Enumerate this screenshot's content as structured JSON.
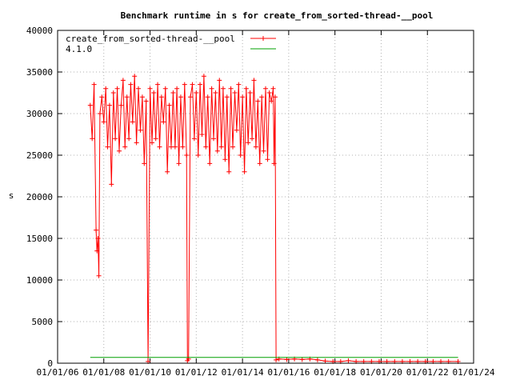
{
  "chart_data": {
    "type": "line",
    "title": "Benchmark runtime in s for create_from_sorted-thread-__pool",
    "xlabel": "",
    "ylabel": "s",
    "ylim": [
      0,
      40000
    ],
    "xlim": [
      "2006-01-01",
      "2024-01-01"
    ],
    "yticks": [
      0,
      5000,
      10000,
      15000,
      20000,
      25000,
      30000,
      35000,
      40000
    ],
    "yticklabels": [
      "0",
      "5000",
      "10000",
      "15000",
      "20000",
      "25000",
      "30000",
      "35000",
      "40000"
    ],
    "xticks": [
      "2006-01-01",
      "2008-01-01",
      "2010-01-01",
      "2012-01-01",
      "2014-01-01",
      "2016-01-01",
      "2018-01-01",
      "2020-01-01",
      "2022-01-01",
      "2024-01-01"
    ],
    "xticklabels": [
      "01/01/06",
      "01/01/08",
      "01/01/10",
      "01/01/12",
      "01/01/14",
      "01/01/16",
      "01/01/18",
      "01/01/20",
      "01/01/22",
      "01/01/24"
    ],
    "grid": true,
    "legend_position": "top-left",
    "series": [
      {
        "name": "create_from_sorted-thread-__pool",
        "color": "#ff0000",
        "marker": "plus",
        "points": [
          [
            "2007-06-01",
            31000
          ],
          [
            "2007-07-01",
            27000
          ],
          [
            "2007-08-01",
            33500
          ],
          [
            "2007-09-01",
            16000
          ],
          [
            "2007-09-15",
            13500
          ],
          [
            "2007-10-01",
            15000
          ],
          [
            "2007-10-15",
            10500
          ],
          [
            "2007-11-01",
            30000
          ],
          [
            "2007-12-01",
            32000
          ],
          [
            "2008-01-01",
            29000
          ],
          [
            "2008-02-01",
            33000
          ],
          [
            "2008-03-01",
            26000
          ],
          [
            "2008-04-01",
            31000
          ],
          [
            "2008-05-01",
            21500
          ],
          [
            "2008-06-01",
            32500
          ],
          [
            "2008-07-01",
            27000
          ],
          [
            "2008-08-01",
            33000
          ],
          [
            "2008-09-01",
            25500
          ],
          [
            "2008-10-01",
            31000
          ],
          [
            "2008-11-01",
            34000
          ],
          [
            "2008-12-01",
            26000
          ],
          [
            "2009-01-01",
            32000
          ],
          [
            "2009-02-01",
            27000
          ],
          [
            "2009-03-01",
            33500
          ],
          [
            "2009-04-01",
            29000
          ],
          [
            "2009-05-01",
            34500
          ],
          [
            "2009-06-01",
            26500
          ],
          [
            "2009-07-01",
            33000
          ],
          [
            "2009-08-01",
            28000
          ],
          [
            "2009-09-01",
            32000
          ],
          [
            "2009-10-01",
            24000
          ],
          [
            "2009-11-01",
            31500
          ],
          [
            "2009-12-01",
            200
          ],
          [
            "2010-01-01",
            33000
          ],
          [
            "2010-02-01",
            26500
          ],
          [
            "2010-03-01",
            32500
          ],
          [
            "2010-04-01",
            27000
          ],
          [
            "2010-05-01",
            33500
          ],
          [
            "2010-06-01",
            26000
          ],
          [
            "2010-07-01",
            32000
          ],
          [
            "2010-08-01",
            29000
          ],
          [
            "2010-09-01",
            33000
          ],
          [
            "2010-10-01",
            23000
          ],
          [
            "2010-11-01",
            31000
          ],
          [
            "2010-12-01",
            26000
          ],
          [
            "2011-01-01",
            32500
          ],
          [
            "2011-02-01",
            26000
          ],
          [
            "2011-03-01",
            33000
          ],
          [
            "2011-04-01",
            24000
          ],
          [
            "2011-05-01",
            32000
          ],
          [
            "2011-06-01",
            26000
          ],
          [
            "2011-07-01",
            33500
          ],
          [
            "2011-08-01",
            25000
          ],
          [
            "2011-08-15",
            300
          ],
          [
            "2011-09-01",
            500
          ],
          [
            "2011-10-01",
            32000
          ],
          [
            "2011-11-01",
            33500
          ],
          [
            "2011-12-01",
            27000
          ],
          [
            "2012-01-01",
            32500
          ],
          [
            "2012-02-01",
            25000
          ],
          [
            "2012-03-01",
            33500
          ],
          [
            "2012-04-01",
            27500
          ],
          [
            "2012-05-01",
            34500
          ],
          [
            "2012-06-01",
            26000
          ],
          [
            "2012-07-01",
            32000
          ],
          [
            "2012-08-01",
            24000
          ],
          [
            "2012-09-01",
            33000
          ],
          [
            "2012-10-01",
            27000
          ],
          [
            "2012-11-01",
            32500
          ],
          [
            "2012-12-01",
            25500
          ],
          [
            "2013-01-01",
            34000
          ],
          [
            "2013-02-01",
            26000
          ],
          [
            "2013-03-01",
            33000
          ],
          [
            "2013-04-01",
            24500
          ],
          [
            "2013-05-01",
            32000
          ],
          [
            "2013-06-01",
            23000
          ],
          [
            "2013-07-01",
            33000
          ],
          [
            "2013-08-01",
            26000
          ],
          [
            "2013-09-01",
            32500
          ],
          [
            "2013-10-01",
            28000
          ],
          [
            "2013-11-01",
            33500
          ],
          [
            "2013-12-01",
            25000
          ],
          [
            "2014-01-01",
            32000
          ],
          [
            "2014-02-01",
            23000
          ],
          [
            "2014-03-01",
            33000
          ],
          [
            "2014-04-01",
            26500
          ],
          [
            "2014-05-01",
            32500
          ],
          [
            "2014-06-01",
            27000
          ],
          [
            "2014-07-01",
            34000
          ],
          [
            "2014-08-01",
            26000
          ],
          [
            "2014-09-01",
            31500
          ],
          [
            "2014-10-01",
            24000
          ],
          [
            "2014-11-01",
            32000
          ],
          [
            "2014-12-01",
            25500
          ],
          [
            "2015-01-01",
            33000
          ],
          [
            "2015-02-01",
            24500
          ],
          [
            "2015-03-01",
            32500
          ],
          [
            "2015-04-01",
            31500
          ],
          [
            "2015-05-01",
            33000
          ],
          [
            "2015-05-15",
            24000
          ],
          [
            "2015-06-01",
            32000
          ],
          [
            "2015-06-15",
            400
          ],
          [
            "2015-08-01",
            500
          ],
          [
            "2015-12-01",
            450
          ],
          [
            "2016-04-01",
            500
          ],
          [
            "2016-08-01",
            450
          ],
          [
            "2016-12-01",
            500
          ],
          [
            "2017-04-01",
            400
          ],
          [
            "2017-08-01",
            250
          ],
          [
            "2017-12-01",
            200
          ],
          [
            "2018-04-01",
            200
          ],
          [
            "2018-08-01",
            300
          ],
          [
            "2018-12-01",
            200
          ],
          [
            "2019-04-01",
            200
          ],
          [
            "2019-08-01",
            200
          ],
          [
            "2019-12-01",
            200
          ],
          [
            "2020-04-01",
            200
          ],
          [
            "2020-08-01",
            200
          ],
          [
            "2020-12-01",
            200
          ],
          [
            "2021-04-01",
            200
          ],
          [
            "2021-08-01",
            200
          ],
          [
            "2021-12-01",
            200
          ],
          [
            "2022-04-01",
            200
          ],
          [
            "2022-08-01",
            200
          ],
          [
            "2022-12-01",
            200
          ],
          [
            "2023-05-01",
            200
          ]
        ]
      },
      {
        "name": "4.1.0",
        "color": "#00a000",
        "marker": "none",
        "points": [
          [
            "2007-06-01",
            700
          ],
          [
            "2023-05-01",
            700
          ]
        ]
      }
    ]
  }
}
